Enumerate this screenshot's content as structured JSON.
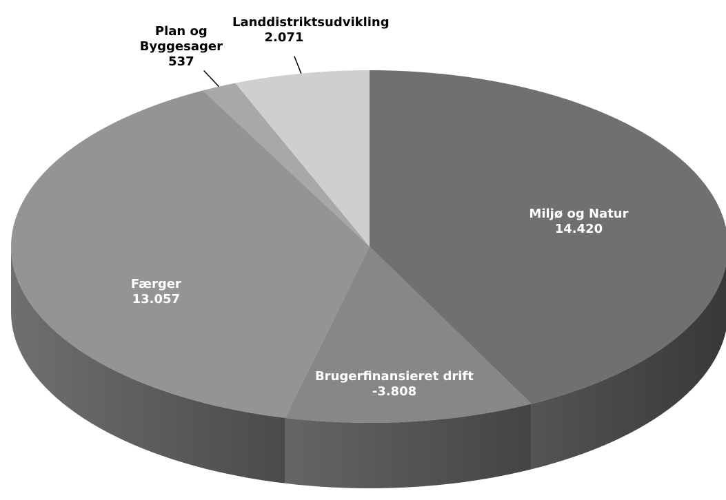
{
  "chart_data": {
    "type": "pie",
    "categories": [
      "Miljø og Natur",
      "Brugerfinansieret drift",
      "Færger",
      "Plan og Byggesager",
      "Landdistriktsudvikling"
    ],
    "values": [
      14420,
      -3808,
      13057,
      537,
      2071
    ],
    "value_labels": [
      "14.420",
      "-3.808",
      "13.057",
      "537",
      "2.071"
    ],
    "colors": [
      "#707070",
      "#878787",
      "#949494",
      "#a8a8a8",
      "#cfcfcf"
    ]
  }
}
